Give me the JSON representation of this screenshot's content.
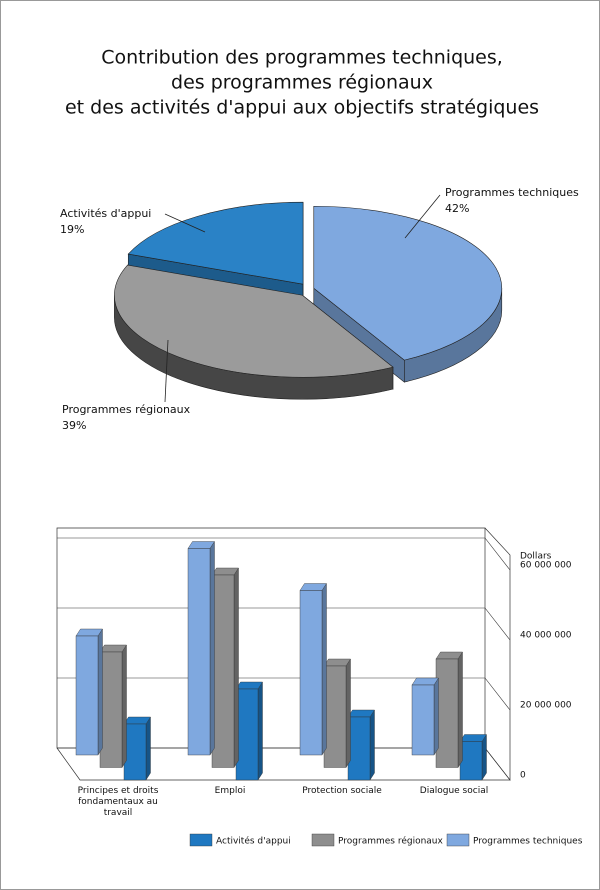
{
  "chart_data": [
    {
      "type": "pie",
      "title": [
        "Contribution des programmes techniques,",
        "des programmes régionaux",
        "et des activités d'appui aux objectifs stratégiques"
      ],
      "categories": [
        "Activités d'appui",
        "Programmes régionaux",
        "Programmes techniques"
      ],
      "values": [
        19,
        39,
        42
      ],
      "value_labels": [
        "19%",
        "39%",
        "42%"
      ],
      "colors": [
        "#2a82c6",
        "#9b9b9b",
        "#7fa8df"
      ]
    },
    {
      "type": "bar3d",
      "categories": [
        "Principes et droits fondamentaux au travail",
        "Emploi",
        "Protection sociale",
        "Dialogue social"
      ],
      "series": [
        {
          "name": "Activités d'appui",
          "color": "#1f78c1",
          "values": [
            16000000,
            26000000,
            18000000,
            11000000
          ]
        },
        {
          "name": "Programmes régionaux",
          "color": "#8e8e8e",
          "values": [
            33000000,
            55000000,
            29000000,
            31000000
          ]
        },
        {
          "name": "Programmes techniques",
          "color": "#7fa8df",
          "values": [
            34000000,
            59000000,
            47000000,
            20000000
          ]
        }
      ],
      "y_label": "Dollars",
      "ylim": [
        0,
        60000000
      ],
      "yticks": [
        0,
        {
          "value": 20000000,
          "label": "20 000 000"
        },
        {
          "value": 40000000,
          "label": "40 000 000"
        },
        {
          "value": 60000000,
          "label": "60 000 000"
        }
      ],
      "grid": true
    }
  ]
}
